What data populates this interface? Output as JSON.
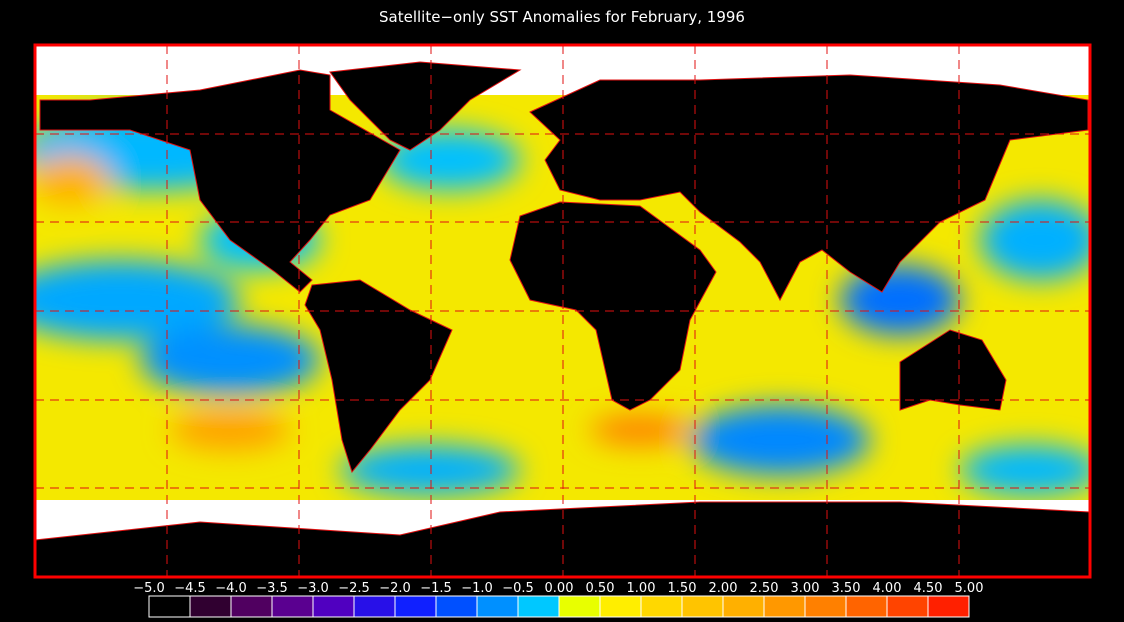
{
  "title": "Satellite−only SST Anomalies for February, 1996",
  "colorbar": {
    "ticks": [
      {
        "value": -5,
        "label": "−5.0"
      },
      {
        "value": -4.5,
        "label": "−4.5"
      },
      {
        "value": -4,
        "label": "−4.0"
      },
      {
        "value": -3.5,
        "label": "−3.5"
      },
      {
        "value": -3,
        "label": "−3.0"
      },
      {
        "value": -2.5,
        "label": "−2.5"
      },
      {
        "value": -2,
        "label": "−2.0"
      },
      {
        "value": -1.5,
        "label": "−1.5"
      },
      {
        "value": -1,
        "label": "−1.0"
      },
      {
        "value": -0.5,
        "label": "−0.5"
      },
      {
        "value": 0,
        "label": "0.00"
      },
      {
        "value": 0.5,
        "label": "0.50"
      },
      {
        "value": 1,
        "label": "1.00"
      },
      {
        "value": 1.5,
        "label": "1.50"
      },
      {
        "value": 2,
        "label": "2.00"
      },
      {
        "value": 2.5,
        "label": "2.50"
      },
      {
        "value": 3,
        "label": "3.00"
      },
      {
        "value": 3.5,
        "label": "3.50"
      },
      {
        "value": 4,
        "label": "4.00"
      },
      {
        "value": 4.5,
        "label": "4.50"
      },
      {
        "value": 5,
        "label": "5.00"
      }
    ],
    "colors": [
      "#000000",
      "#300030",
      "#500060",
      "#5a0090",
      "#5000c0",
      "#2810e8",
      "#1020ff",
      "#0050ff",
      "#0090ff",
      "#00c8ff",
      "#e8ff00",
      "#ffee00",
      "#ffd800",
      "#ffc400",
      "#ffb000",
      "#ff9800",
      "#ff8000",
      "#ff6400",
      "#ff4400",
      "#ff2000"
    ]
  }
}
